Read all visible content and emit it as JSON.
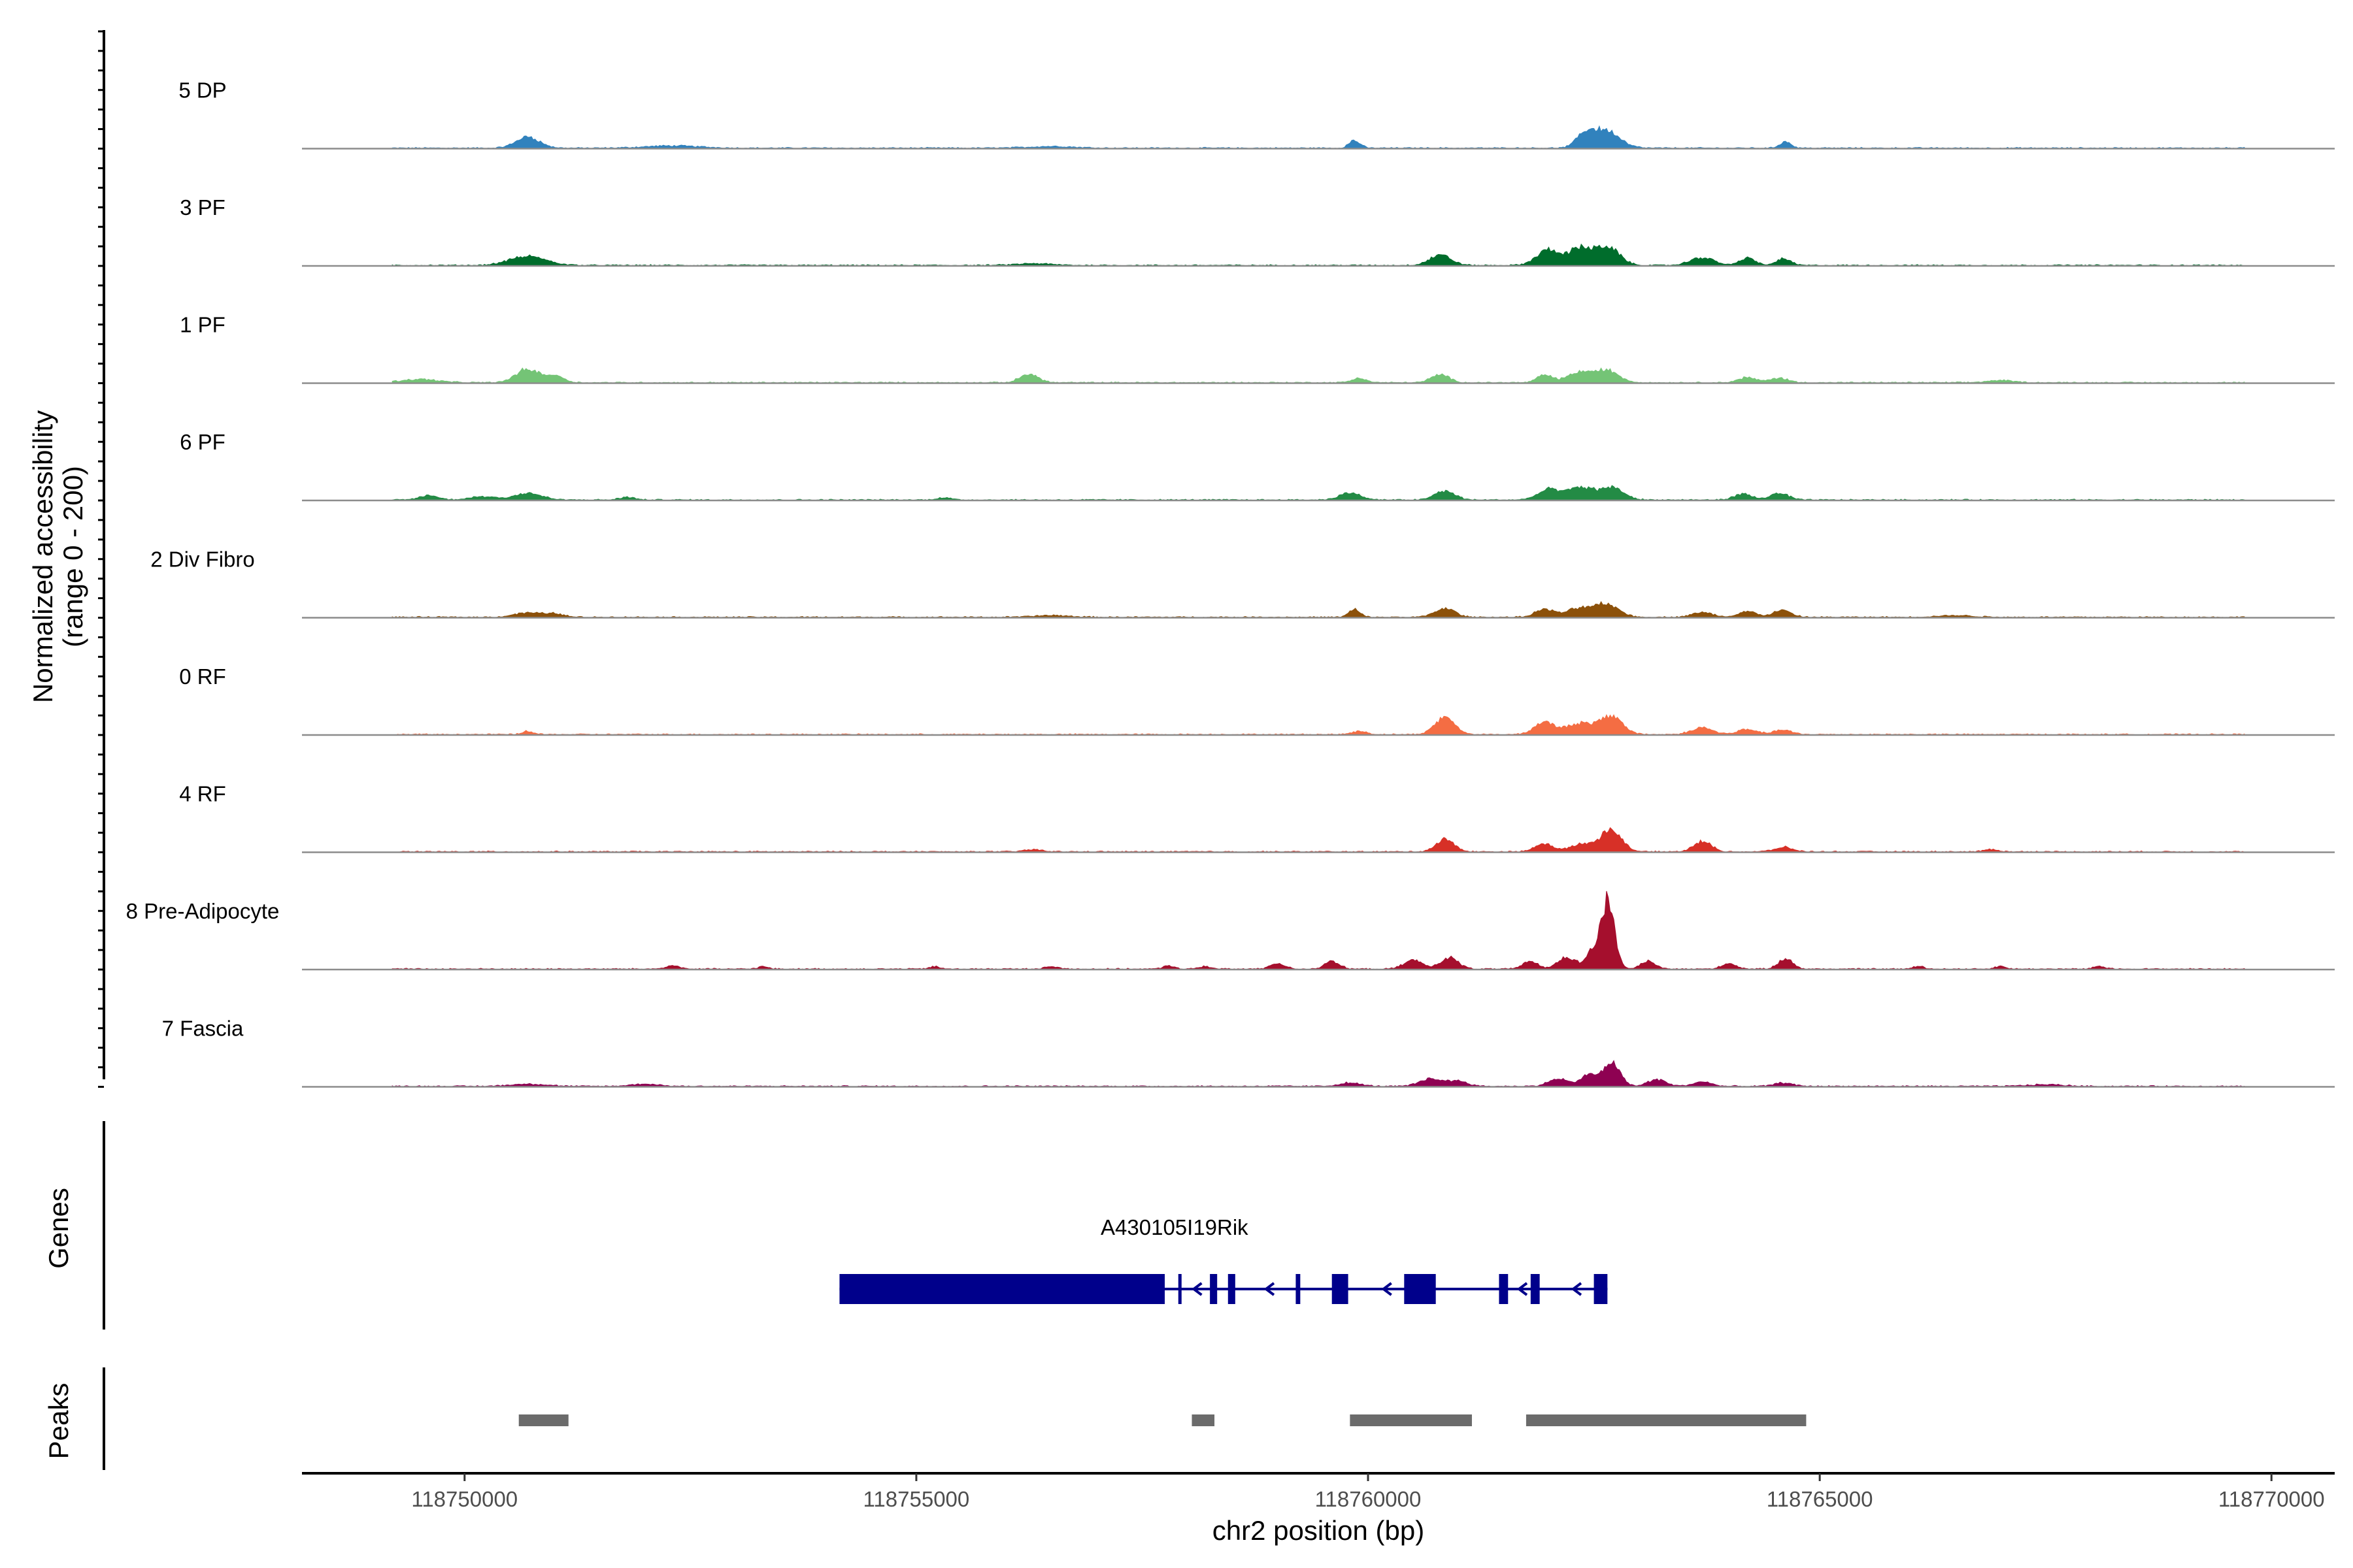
{
  "chart_data": {
    "type": "area",
    "title": "",
    "y_axis_title_line1": "Normalized accessibility",
    "y_axis_title_line2": "(range 0 - 200)",
    "x_axis_title": "chr2 position (bp)",
    "x_range": [
      118748200,
      118770700
    ],
    "x_ticks": [
      118750000,
      118755000,
      118760000,
      118765000,
      118770000
    ],
    "x_tick_labels": [
      "118750000",
      "118755000",
      "118760000",
      "118765000",
      "118770000"
    ],
    "y_range": [
      0,
      200
    ],
    "tracks": [
      {
        "name": "5 DP",
        "color": "#3182bd",
        "peaks": [
          [
            118750700,
            20,
            130
          ],
          [
            118759850,
            14,
            60
          ],
          [
            118762400,
            22,
            95
          ],
          [
            118762630,
            32,
            150
          ],
          [
            118764620,
            12,
            60
          ],
          [
            118752300,
            4,
            300
          ],
          [
            118756500,
            3,
            250
          ]
        ]
      },
      {
        "name": "3 PF",
        "color": "#006d2c",
        "peaks": [
          [
            118750700,
            16,
            200
          ],
          [
            118756300,
            3,
            200
          ],
          [
            118760800,
            18,
            120
          ],
          [
            118762000,
            28,
            130
          ],
          [
            118762350,
            30,
            120
          ],
          [
            118762650,
            33,
            130
          ],
          [
            118763700,
            14,
            130
          ],
          [
            118764200,
            14,
            80
          ],
          [
            118764600,
            12,
            80
          ]
        ]
      },
      {
        "name": "1 PF",
        "color": "#74c476",
        "peaks": [
          [
            118749500,
            6,
            200
          ],
          [
            118750700,
            24,
            130
          ],
          [
            118751000,
            12,
            100
          ],
          [
            118756250,
            16,
            100
          ],
          [
            118759900,
            8,
            80
          ],
          [
            118760800,
            14,
            100
          ],
          [
            118761950,
            14,
            80
          ],
          [
            118762350,
            18,
            150
          ],
          [
            118762650,
            20,
            130
          ],
          [
            118764200,
            9,
            100
          ],
          [
            118764550,
            8,
            100
          ],
          [
            118767000,
            4,
            150
          ]
        ]
      },
      {
        "name": "6 PF",
        "color": "#238b45",
        "peaks": [
          [
            118749600,
            8,
            100
          ],
          [
            118750200,
            6,
            150
          ],
          [
            118750700,
            12,
            150
          ],
          [
            118751800,
            5,
            80
          ],
          [
            118755300,
            4,
            80
          ],
          [
            118759800,
            12,
            120
          ],
          [
            118760850,
            16,
            110
          ],
          [
            118762000,
            18,
            120
          ],
          [
            118762350,
            22,
            140
          ],
          [
            118762700,
            22,
            130
          ],
          [
            118764150,
            10,
            100
          ],
          [
            118764550,
            12,
            100
          ]
        ]
      },
      {
        "name": "2 Div Fibro",
        "color": "#8c510a",
        "peaks": [
          [
            118750700,
            8,
            150
          ],
          [
            118751000,
            6,
            100
          ],
          [
            118756500,
            3,
            200
          ],
          [
            118759850,
            14,
            60
          ],
          [
            118760850,
            16,
            110
          ],
          [
            118761950,
            14,
            100
          ],
          [
            118762350,
            16,
            150
          ],
          [
            118762650,
            22,
            130
          ],
          [
            118763700,
            8,
            120
          ],
          [
            118764200,
            10,
            100
          ],
          [
            118764580,
            12,
            100
          ],
          [
            118766500,
            3,
            200
          ]
        ]
      },
      {
        "name": "0 RF",
        "color": "#f46d43",
        "peaks": [
          [
            118750700,
            6,
            60
          ],
          [
            118759900,
            6,
            80
          ],
          [
            118760850,
            30,
            110
          ],
          [
            118761950,
            22,
            110
          ],
          [
            118762350,
            20,
            150
          ],
          [
            118762700,
            32,
            120
          ],
          [
            118763700,
            12,
            120
          ],
          [
            118764200,
            9,
            100
          ],
          [
            118764580,
            8,
            100
          ]
        ]
      },
      {
        "name": "4 RF",
        "color": "#d73027",
        "peaks": [
          [
            118756300,
            4,
            100
          ],
          [
            118760850,
            22,
            100
          ],
          [
            118761950,
            14,
            100
          ],
          [
            118762400,
            14,
            150
          ],
          [
            118762700,
            38,
            110
          ],
          [
            118763700,
            18,
            100
          ],
          [
            118764600,
            8,
            100
          ],
          [
            118766900,
            4,
            80
          ]
        ]
      },
      {
        "name": "8 Pre-Adipocyte",
        "color": "#a50f2d",
        "peaks": [
          [
            118752300,
            6,
            80
          ],
          [
            118753300,
            4,
            60
          ],
          [
            118755200,
            4,
            60
          ],
          [
            118756500,
            4,
            80
          ],
          [
            118757800,
            6,
            60
          ],
          [
            118758200,
            5,
            60
          ],
          [
            118759000,
            10,
            80
          ],
          [
            118759600,
            14,
            80
          ],
          [
            118760500,
            16,
            100
          ],
          [
            118760900,
            20,
            100
          ],
          [
            118761800,
            14,
            80
          ],
          [
            118762200,
            22,
            100
          ],
          [
            118762500,
            34,
            80
          ],
          [
            118762660,
            120,
            70
          ],
          [
            118763100,
            14,
            80
          ],
          [
            118764000,
            10,
            80
          ],
          [
            118764620,
            18,
            80
          ],
          [
            118766100,
            5,
            60
          ],
          [
            118767000,
            5,
            60
          ],
          [
            118768100,
            5,
            60
          ]
        ]
      },
      {
        "name": "7 Fascia",
        "color": "#8e0152",
        "peaks": [
          [
            118750700,
            4,
            200
          ],
          [
            118752000,
            4,
            150
          ],
          [
            118759800,
            6,
            120
          ],
          [
            118760700,
            14,
            120
          ],
          [
            118761000,
            10,
            100
          ],
          [
            118762100,
            14,
            100
          ],
          [
            118762450,
            20,
            100
          ],
          [
            118762700,
            42,
            90
          ],
          [
            118763200,
            12,
            100
          ],
          [
            118763700,
            8,
            100
          ],
          [
            118764600,
            6,
            100
          ],
          [
            118767500,
            3,
            200
          ]
        ]
      }
    ],
    "genes": [
      {
        "name": "A430105I19Rik",
        "strand": "-",
        "start": 118754150,
        "end": 118762650,
        "exons": [
          [
            118754150,
            118757750
          ],
          [
            118757900,
            118757930
          ],
          [
            118758250,
            118758330
          ],
          [
            118758450,
            118758530
          ],
          [
            118759200,
            118759250
          ],
          [
            118759600,
            118759780
          ],
          [
            118760400,
            118760750
          ],
          [
            118761450,
            118761550
          ],
          [
            118761800,
            118761900
          ],
          [
            118762500,
            118762650
          ]
        ],
        "arrows": [
          118758100,
          118758900,
          118760200,
          118761700,
          118762300
        ]
      }
    ],
    "peaks": [
      [
        118750600,
        118751150
      ],
      [
        118758050,
        118758300
      ],
      [
        118759800,
        118761150
      ],
      [
        118761750,
        118764850
      ]
    ],
    "panel_titles": {
      "genes": "Genes",
      "peaks": "Peaks"
    }
  }
}
